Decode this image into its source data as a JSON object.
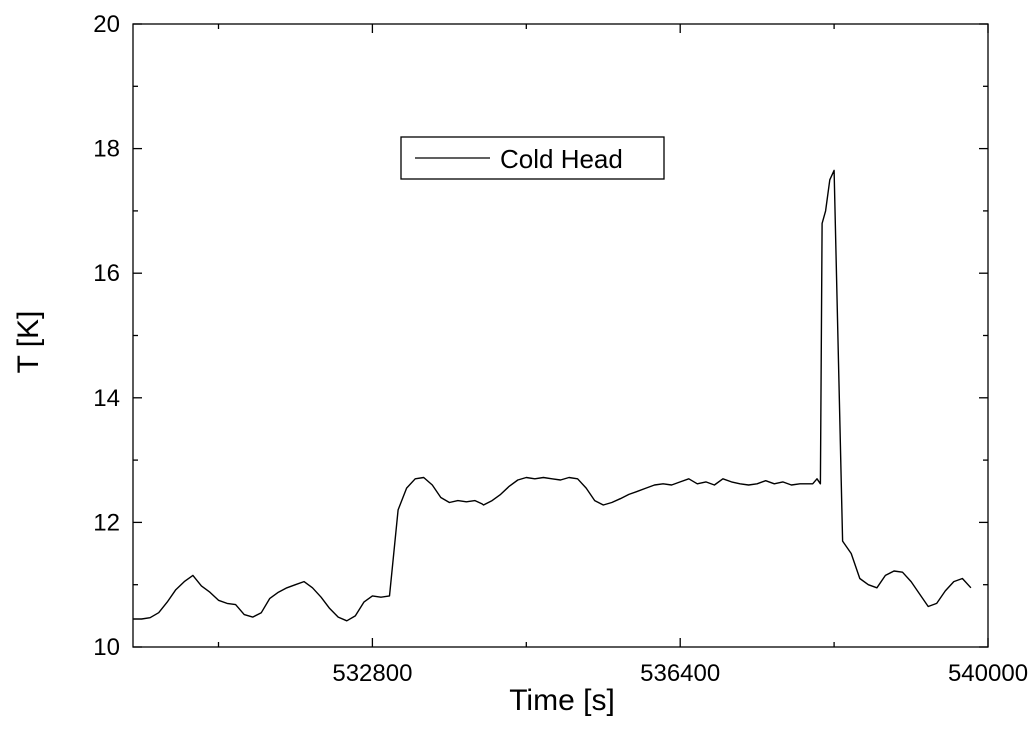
{
  "chart_data": {
    "type": "line",
    "title": "",
    "xlabel": "Time [s]",
    "ylabel": "T [K]",
    "xlim": [
      530000,
      540000
    ],
    "ylim": [
      10,
      20
    ],
    "x_ticks": [
      532800,
      536400,
      540000
    ],
    "x_tick_labels": [
      "532800",
      "536400",
      "540000"
    ],
    "y_ticks": [
      10,
      12,
      14,
      16,
      18,
      20
    ],
    "y_tick_labels": [
      "10",
      "12",
      "14",
      "16",
      "18",
      "20"
    ],
    "grid": false,
    "legend": {
      "position": "top-center",
      "entries": [
        "Cold Head"
      ]
    },
    "series": [
      {
        "name": "Cold Head",
        "color": "#000000",
        "x": [
          529450,
          529580,
          529700,
          529800,
          529900,
          530000,
          530100,
          530200,
          530300,
          530400,
          530500,
          530600,
          530700,
          530800,
          530900,
          531000,
          531100,
          531200,
          531300,
          531400,
          531500,
          531600,
          531700,
          531800,
          531900,
          532000,
          532100,
          532200,
          532300,
          532400,
          532500,
          532600,
          532700,
          532800,
          532900,
          533000,
          533100,
          533200,
          533300,
          533400,
          533500,
          533600,
          533700,
          533800,
          533900,
          534000,
          534080,
          534100,
          534200,
          534300,
          534400,
          534500,
          534600,
          534700,
          534800,
          534900,
          535000,
          535100,
          535200,
          535300,
          535400,
          535500,
          535600,
          535700,
          535800,
          535900,
          536000,
          536100,
          536200,
          536300,
          536400,
          536500,
          536600,
          536700,
          536800,
          536900,
          537000,
          537100,
          537200,
          537300,
          537400,
          537500,
          537600,
          537700,
          537800,
          537860,
          537880,
          537900,
          537950,
          538000,
          538040,
          538060,
          538100,
          538150,
          538200,
          538300,
          538400,
          538500,
          538600,
          538700,
          538800,
          538900,
          539000,
          539100,
          539200,
          539300,
          539400,
          539500,
          539600,
          539700,
          539800
        ],
        "values": [
          11.0,
          10.9,
          10.7,
          10.6,
          10.52,
          10.45,
          10.45,
          10.47,
          10.55,
          10.72,
          10.92,
          11.05,
          11.15,
          10.98,
          10.88,
          10.75,
          10.7,
          10.68,
          10.52,
          10.48,
          10.55,
          10.78,
          10.88,
          10.95,
          11.0,
          11.05,
          10.95,
          10.8,
          10.62,
          10.48,
          10.42,
          10.5,
          10.72,
          10.82,
          10.8,
          10.82,
          12.2,
          12.55,
          12.7,
          12.72,
          12.6,
          12.4,
          12.32,
          12.35,
          12.33,
          12.35,
          12.3,
          12.28,
          12.35,
          12.45,
          12.58,
          12.68,
          12.72,
          12.7,
          12.72,
          12.7,
          12.68,
          12.72,
          12.7,
          12.55,
          12.35,
          12.28,
          12.32,
          12.38,
          12.45,
          12.5,
          12.55,
          12.6,
          12.62,
          12.6,
          12.65,
          12.7,
          12.62,
          12.65,
          12.6,
          12.7,
          12.65,
          12.62,
          12.6,
          12.62,
          12.67,
          12.62,
          12.65,
          12.6,
          12.62,
          12.62,
          12.62,
          12.62,
          12.62,
          12.7,
          12.62,
          16.8,
          17.0,
          17.5,
          17.65,
          11.7,
          11.5,
          11.1,
          11.0,
          10.95,
          11.15,
          11.22,
          11.2,
          11.05,
          10.85,
          10.65,
          10.7,
          10.9,
          11.05,
          11.1,
          10.95
        ]
      }
    ]
  }
}
